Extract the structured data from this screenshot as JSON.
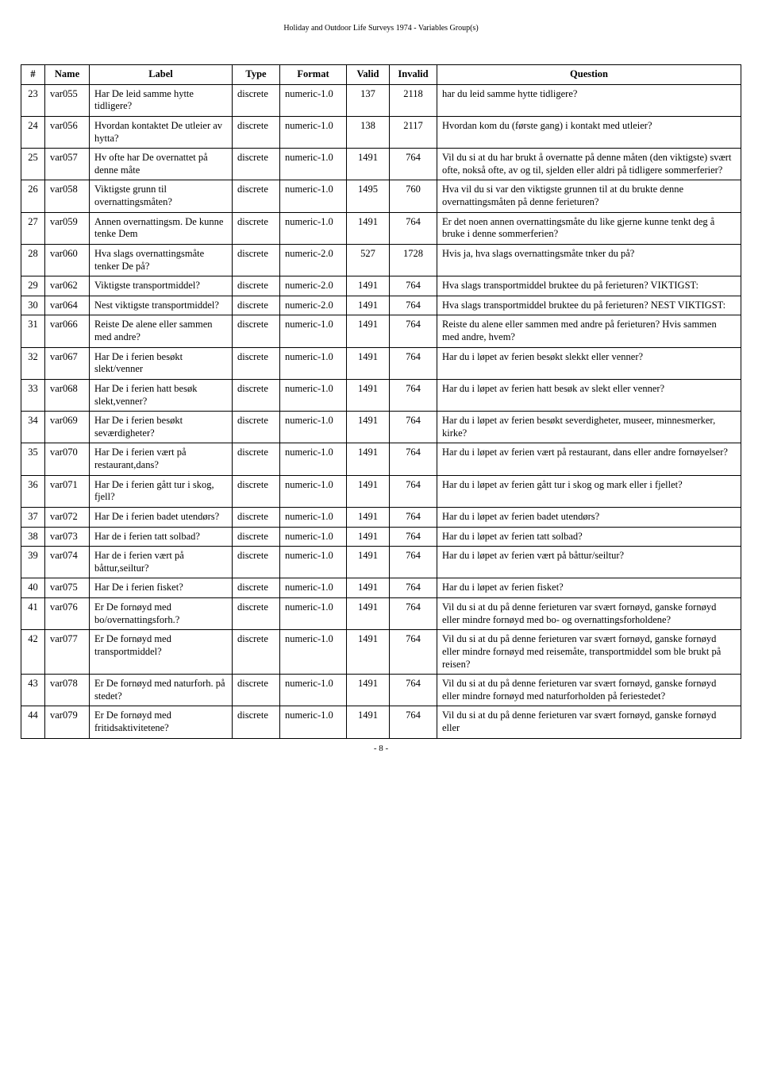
{
  "doc_header": "Holiday and Outdoor Life Surveys 1974 - Variables Group(s)",
  "page_footer": "- 8 -",
  "columns": {
    "num": "#",
    "name": "Name",
    "label": "Label",
    "type": "Type",
    "format": "Format",
    "valid": "Valid",
    "invalid": "Invalid",
    "question": "Question"
  },
  "col_widths": {
    "num": "30px",
    "name": "56px",
    "label": "180px",
    "type": "60px",
    "format": "84px",
    "valid": "54px",
    "invalid": "60px",
    "question": "auto"
  },
  "rows": [
    {
      "num": "23",
      "name": "var055",
      "label": "Har De leid samme hytte tidligere?",
      "type": "discrete",
      "format": "numeric-1.0",
      "valid": "137",
      "invalid": "2118",
      "question": "har du leid samme hytte tidligere?"
    },
    {
      "num": "24",
      "name": "var056",
      "label": "Hvordan kontaktet De utleier av hytta?",
      "type": "discrete",
      "format": "numeric-1.0",
      "valid": "138",
      "invalid": "2117",
      "question": "Hvordan kom du (første gang) i kontakt med utleier?"
    },
    {
      "num": "25",
      "name": "var057",
      "label": "Hv ofte har De overnattet på denne måte",
      "type": "discrete",
      "format": "numeric-1.0",
      "valid": "1491",
      "invalid": "764",
      "question": "Vil du si at du har brukt å overnatte på denne måten (den viktigste) svært ofte, nokså ofte, av og til, sjelden eller aldri på tidligere sommerferier?"
    },
    {
      "num": "26",
      "name": "var058",
      "label": "Viktigste grunn til overnattingsmåten?",
      "type": "discrete",
      "format": "numeric-1.0",
      "valid": "1495",
      "invalid": "760",
      "question": "Hva vil du si var den viktigste grunnen til at du brukte denne overnattingsmåten på denne ferieturen?"
    },
    {
      "num": "27",
      "name": "var059",
      "label": "Annen overnattingsm. De kunne tenke Dem",
      "type": "discrete",
      "format": "numeric-1.0",
      "valid": "1491",
      "invalid": "764",
      "question": "Er det noen annen overnattingsmåte du like gjerne kunne tenkt deg å bruke i denne sommerferien?"
    },
    {
      "num": "28",
      "name": "var060",
      "label": "Hva slags overnattingsmåte tenker De på?",
      "type": "discrete",
      "format": "numeric-2.0",
      "valid": "527",
      "invalid": "1728",
      "question": "Hvis ja, hva slags overnattingsmåte tnker du på?"
    },
    {
      "num": "29",
      "name": "var062",
      "label": "Viktigste transportmiddel?",
      "type": "discrete",
      "format": "numeric-2.0",
      "valid": "1491",
      "invalid": "764",
      "question": "Hva slags transportmiddel bruktee du på ferieturen? VIKTIGST:"
    },
    {
      "num": "30",
      "name": "var064",
      "label": "Nest viktigste transportmiddel?",
      "type": "discrete",
      "format": "numeric-2.0",
      "valid": "1491",
      "invalid": "764",
      "question": "Hva slags transportmiddel bruktee du på ferieturen? NEST VIKTIGST:"
    },
    {
      "num": "31",
      "name": "var066",
      "label": "Reiste De alene eller sammen med andre?",
      "type": "discrete",
      "format": "numeric-1.0",
      "valid": "1491",
      "invalid": "764",
      "question": "Reiste du alene eller sammen med andre på ferieturen? Hvis sammen med andre, hvem?"
    },
    {
      "num": "32",
      "name": "var067",
      "label": "Har De i ferien besøkt slekt/venner",
      "type": "discrete",
      "format": "numeric-1.0",
      "valid": "1491",
      "invalid": "764",
      "question": "Har du i løpet av ferien besøkt slekkt eller venner?"
    },
    {
      "num": "33",
      "name": "var068",
      "label": "Har De i ferien hatt besøk slekt,venner?",
      "type": "discrete",
      "format": "numeric-1.0",
      "valid": "1491",
      "invalid": "764",
      "question": "Har du i løpet av ferien hatt besøk av slekt eller venner?"
    },
    {
      "num": "34",
      "name": "var069",
      "label": "Har De i ferien besøkt seværdigheter?",
      "type": "discrete",
      "format": "numeric-1.0",
      "valid": "1491",
      "invalid": "764",
      "question": "Har du i løpet av ferien besøkt severdigheter, museer, minnesmerker, kirke?"
    },
    {
      "num": "35",
      "name": "var070",
      "label": "Har De i ferien vært på restaurant,dans?",
      "type": "discrete",
      "format": "numeric-1.0",
      "valid": "1491",
      "invalid": "764",
      "question": "Har du i løpet av ferien vært på restaurant, dans eller andre fornøyelser?"
    },
    {
      "num": "36",
      "name": "var071",
      "label": "Har De i ferien gått tur i skog, fjell?",
      "type": "discrete",
      "format": "numeric-1.0",
      "valid": "1491",
      "invalid": "764",
      "question": "Har du i løpet av ferien gått tur i skog og mark eller i fjellet?"
    },
    {
      "num": "37",
      "name": "var072",
      "label": "Har De i ferien badet utendørs?",
      "type": "discrete",
      "format": "numeric-1.0",
      "valid": "1491",
      "invalid": "764",
      "question": "Har du i løpet av ferien badet utendørs?"
    },
    {
      "num": "38",
      "name": "var073",
      "label": "Har de i ferien tatt solbad?",
      "type": "discrete",
      "format": "numeric-1.0",
      "valid": "1491",
      "invalid": "764",
      "question": "Har du i løpet av ferien tatt solbad?"
    },
    {
      "num": "39",
      "name": "var074",
      "label": "Har de i ferien vært på båttur,seiltur?",
      "type": "discrete",
      "format": "numeric-1.0",
      "valid": "1491",
      "invalid": "764",
      "question": "Har du i løpet av ferien vært på båttur/seiltur?"
    },
    {
      "num": "40",
      "name": "var075",
      "label": "Har De i ferien fisket?",
      "type": "discrete",
      "format": "numeric-1.0",
      "valid": "1491",
      "invalid": "764",
      "question": "Har du i løpet av ferien fisket?"
    },
    {
      "num": "41",
      "name": "var076",
      "label": "Er De fornøyd med bo/overnattingsforh.?",
      "type": "discrete",
      "format": "numeric-1.0",
      "valid": "1491",
      "invalid": "764",
      "question": "Vil du si at du på denne ferieturen var svært fornøyd, ganske fornøyd eller mindre fornøyd med bo- og overnattingsforholdene?"
    },
    {
      "num": "42",
      "name": "var077",
      "label": "Er De fornøyd med transportmiddel?",
      "type": "discrete",
      "format": "numeric-1.0",
      "valid": "1491",
      "invalid": "764",
      "question": "Vil du si at du på denne ferieturen var svært fornøyd, ganske fornøyd eller mindre fornøyd med reisemåte, transportmiddel som ble brukt på reisen?"
    },
    {
      "num": "43",
      "name": "var078",
      "label": "Er De fornøyd med naturforh. på stedet?",
      "type": "discrete",
      "format": "numeric-1.0",
      "valid": "1491",
      "invalid": "764",
      "question": "Vil du si at du på denne ferieturen var svært fornøyd, ganske fornøyd eller mindre fornøyd med naturforholden på feriestedet?"
    },
    {
      "num": "44",
      "name": "var079",
      "label": "Er De fornøyd med fritidsaktivitetene?",
      "type": "discrete",
      "format": "numeric-1.0",
      "valid": "1491",
      "invalid": "764",
      "question": "Vil du si at du på denne ferieturen var svært fornøyd, ganske fornøyd eller"
    }
  ]
}
